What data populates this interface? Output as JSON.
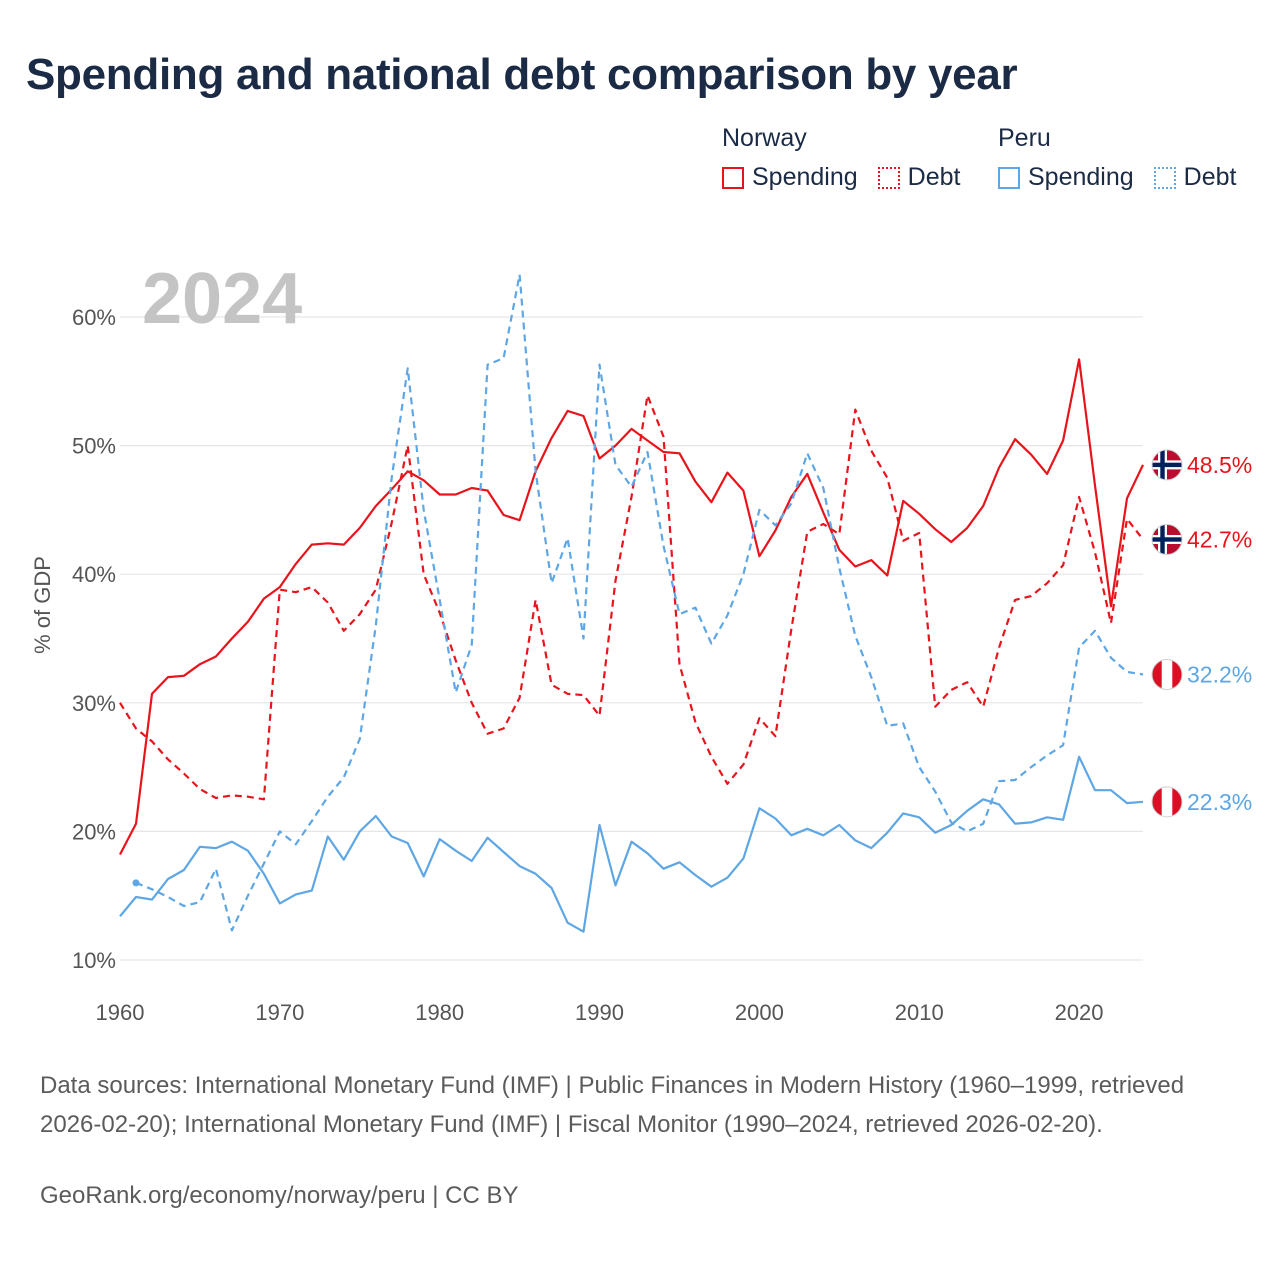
{
  "title": "Spending and national debt comparison by year",
  "legend": {
    "norway": {
      "name": "Norway",
      "spending": "Spending",
      "debt": "Debt"
    },
    "peru": {
      "name": "Peru",
      "spending": "Spending",
      "debt": "Debt"
    }
  },
  "colors": {
    "norway": "#e8141b",
    "peru": "#5ea6e4"
  },
  "year_label": "2024",
  "chart_data": {
    "type": "line",
    "title": "Spending and national debt comparison by year",
    "xlabel": "",
    "ylabel": "% of GDP",
    "xlim": [
      1960,
      2024
    ],
    "ylim": [
      10,
      63
    ],
    "x_ticks": [
      1960,
      1970,
      1980,
      1990,
      2000,
      2010,
      2020
    ],
    "y_ticks": [
      10,
      20,
      30,
      40,
      50,
      60
    ],
    "y_tick_labels": [
      "10%",
      "20%",
      "30%",
      "40%",
      "50%",
      "60%"
    ],
    "grid": true,
    "series": [
      {
        "name": "Norway Spending",
        "country": "norway",
        "dashed": false,
        "start": 1960,
        "end_label": "48.5%",
        "values": [
          18.2,
          20.6,
          30.7,
          32,
          32.1,
          33,
          33.6,
          35,
          36.3,
          38.1,
          39,
          40.8,
          42.3,
          42.4,
          42.3,
          43.6,
          45.3,
          46.6,
          48,
          47.3,
          46.2,
          46.2,
          46.7,
          46.5,
          44.6,
          44.2,
          48,
          50.6,
          52.7,
          52.3,
          49,
          50,
          51.3,
          50.4,
          49.5,
          49.4,
          47.2,
          45.6,
          47.9,
          46.5,
          41.4,
          43.4,
          46,
          47.8,
          44.8,
          41.9,
          40.6,
          41.1,
          39.9,
          45.7,
          44.7,
          43.5,
          42.5,
          43.6,
          45.3,
          48.3,
          50.5,
          49.3,
          47.8,
          50.4,
          56.7,
          46.9,
          37.5,
          45.9,
          48.5
        ]
      },
      {
        "name": "Norway Debt",
        "country": "norway",
        "dashed": true,
        "start": 1960,
        "end_label": "42.7%",
        "values": [
          30,
          28,
          27,
          25.6,
          24.5,
          23.3,
          22.6,
          22.8,
          22.7,
          22.5,
          38.8,
          38.6,
          39,
          37.8,
          35.6,
          36.9,
          38.8,
          44,
          50,
          40,
          37,
          33.3,
          30,
          27.6,
          28,
          30.4,
          38,
          31.4,
          30.7,
          30.6,
          29,
          39.5,
          46,
          53.9,
          50.7,
          33,
          28.5,
          25.8,
          23.7,
          25.2,
          28.8,
          27.4,
          35.7,
          43.3,
          43.9,
          43.1,
          52.8,
          49.6,
          47.5,
          42.6,
          43.2,
          29.7,
          31,
          31.6,
          29.7,
          34.3,
          38,
          38.3,
          39.3,
          40.7,
          46,
          41.7,
          36.2,
          44.3,
          42.7
        ]
      },
      {
        "name": "Peru Spending",
        "country": "peru",
        "dashed": false,
        "start": 1960,
        "end_label": "22.3%",
        "values": [
          13.4,
          14.9,
          14.7,
          16.3,
          17,
          18.8,
          18.7,
          19.2,
          18.5,
          16.7,
          14.4,
          15.1,
          15.4,
          19.6,
          17.8,
          20,
          21.2,
          19.6,
          19.1,
          16.5,
          19.4,
          18.5,
          17.7,
          19.5,
          18.4,
          17.3,
          16.7,
          15.6,
          12.9,
          12.2,
          20.5,
          15.8,
          19.2,
          18.3,
          17.1,
          17.6,
          16.6,
          15.7,
          16.4,
          17.9,
          21.8,
          21,
          19.7,
          20.2,
          19.7,
          20.5,
          19.3,
          18.7,
          19.9,
          21.4,
          21.1,
          19.9,
          20.5,
          21.6,
          22.5,
          22.1,
          20.6,
          20.7,
          21.1,
          20.9,
          25.8,
          23.2,
          23.2,
          22.2,
          22.3
        ]
      },
      {
        "name": "Peru Debt",
        "country": "peru",
        "dashed": true,
        "start": 1961,
        "end_label": "32.2%",
        "values": [
          16,
          15.5,
          14.9,
          14.2,
          14.5,
          17.1,
          12.3,
          15,
          17.5,
          20,
          19,
          20.8,
          22.7,
          24.2,
          27.2,
          36,
          47.5,
          56,
          45,
          38,
          30.8,
          34.5,
          56.3,
          56.8,
          63.3,
          48,
          39.3,
          42.8,
          35,
          56.3,
          48.5,
          46.8,
          49.5,
          42.2,
          36.9,
          37.4,
          34.6,
          36.8,
          40,
          45,
          43.8,
          45.5,
          49.4,
          46.7,
          40.5,
          35.2,
          32,
          28.2,
          28.4,
          25,
          23.1,
          20.7,
          20,
          20.6,
          23.9,
          24,
          25,
          25.9,
          26.7,
          34.3,
          35.6,
          33.5,
          32.4,
          32.2
        ]
      }
    ]
  },
  "source_text": "Data sources: International Monetary Fund (IMF) | Public Finances in Modern History (1960–1999, retrieved 2026-02-20); International Monetary Fund (IMF) | Fiscal Monitor (1990–2024, retrieved 2026-02-20).",
  "credit_text": "GeoRank.org/economy/norway/peru | CC BY"
}
